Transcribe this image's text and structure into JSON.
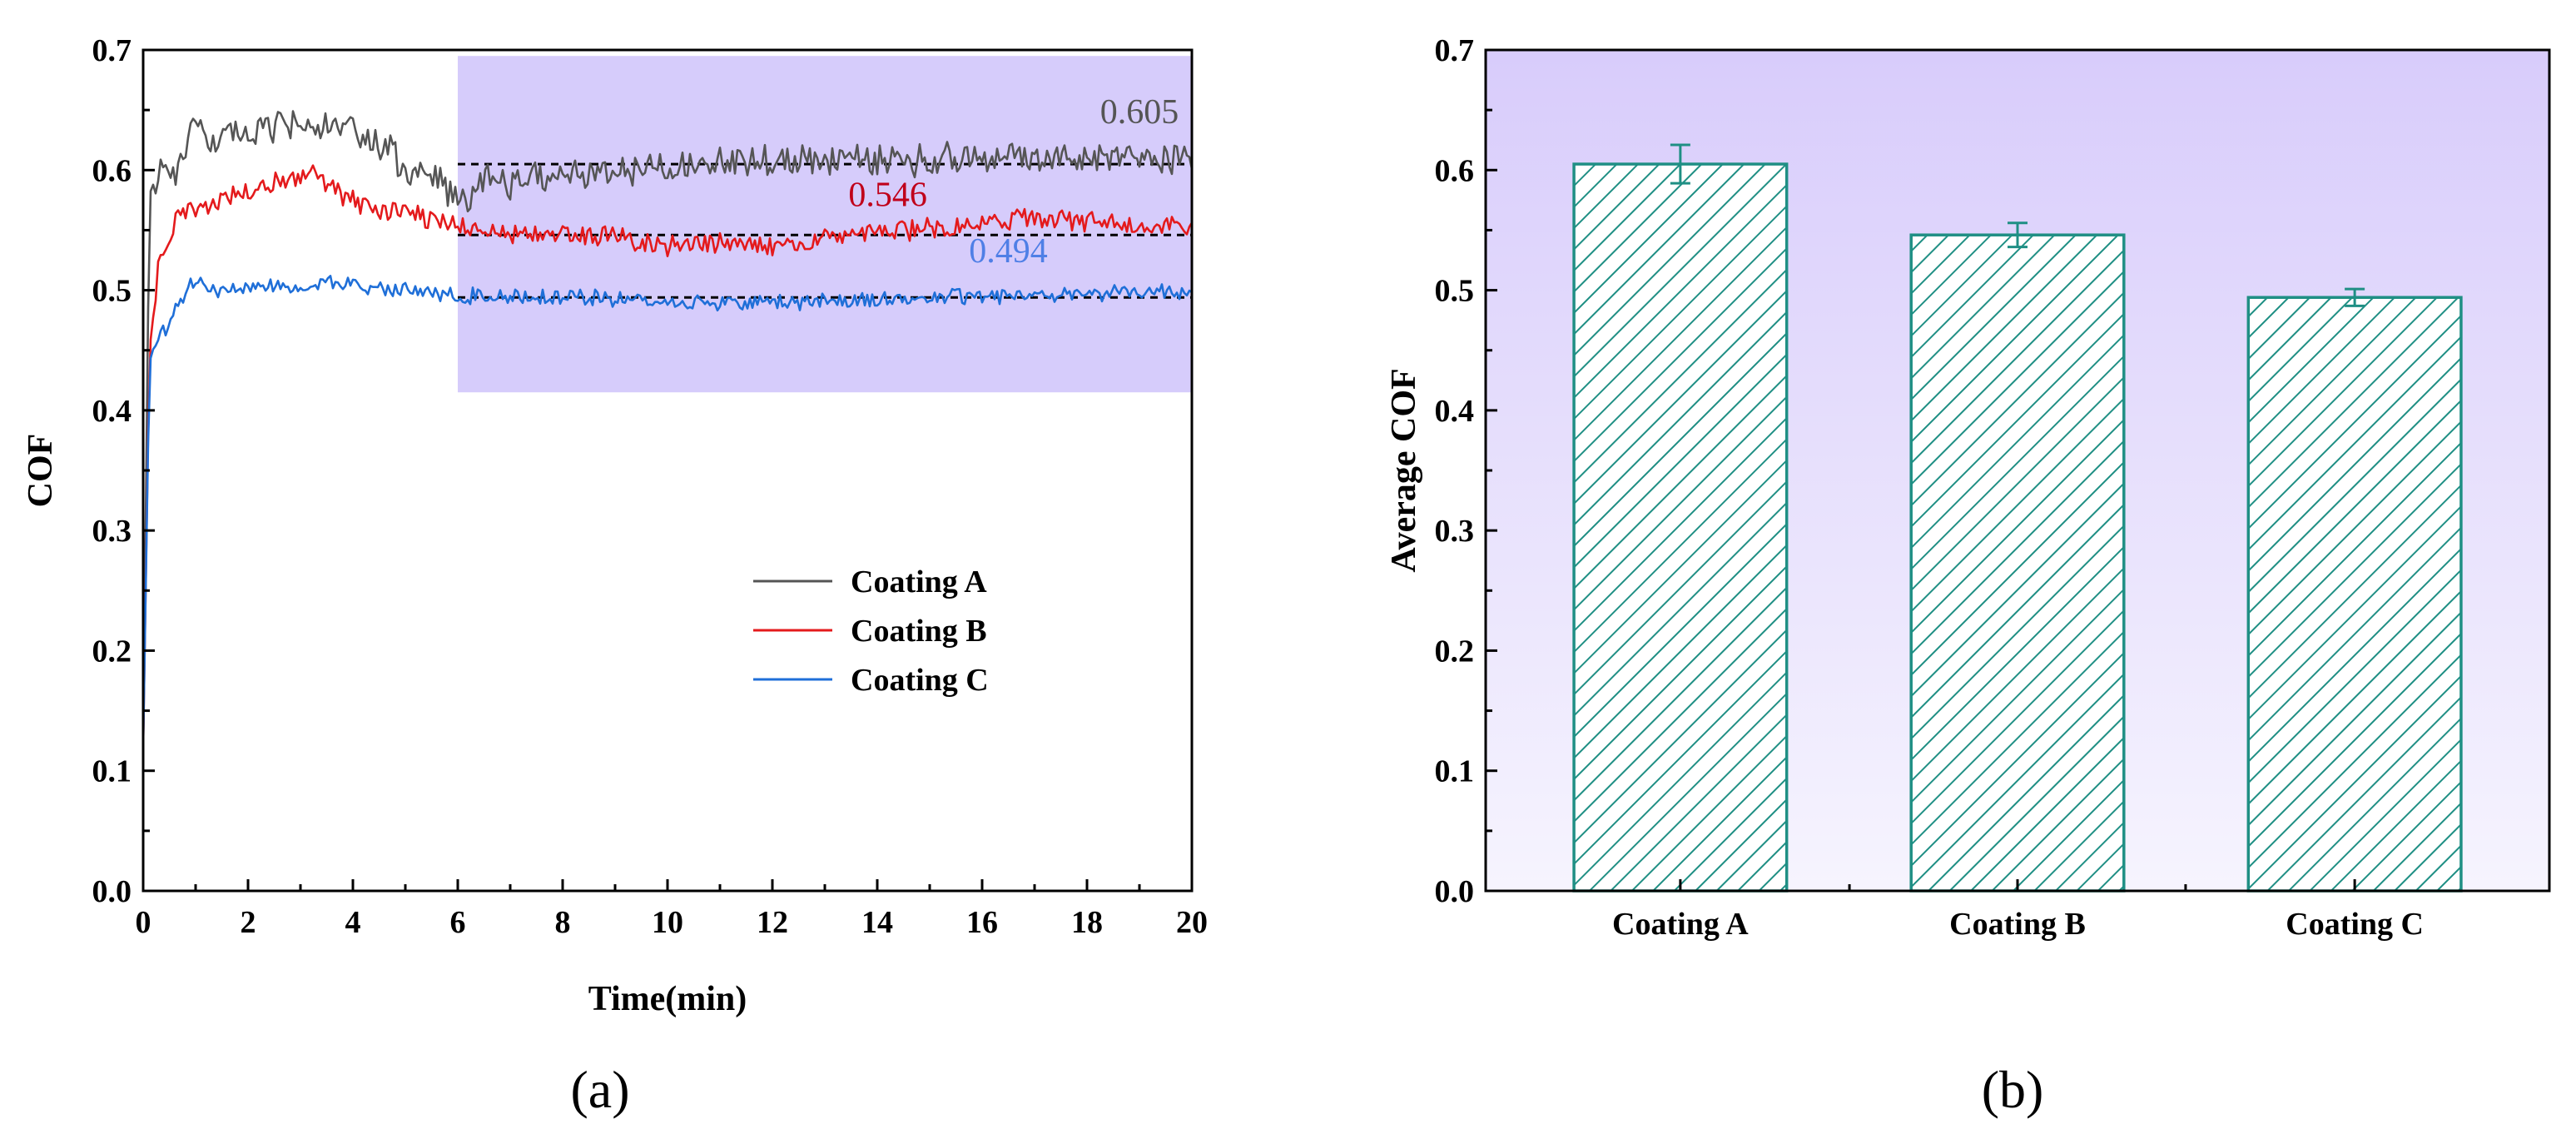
{
  "colors": {
    "coating_a": "#555555",
    "coating_b": "#e41a1c",
    "coating_b_label": "#c0001a",
    "coating_c": "#1f6fd8",
    "coating_c_label": "#4f7fe6",
    "highlight": "#d6ccfb",
    "bar_stroke": "#1f8f84",
    "bg_gradient_top": "#d8ccfb",
    "bg_gradient_bottom": "#f6f4fe"
  },
  "chart_data": [
    {
      "type": "line",
      "panel_label": "(a)",
      "xlabel": "Time(min)",
      "ylabel": "COF",
      "xlim": [
        0,
        20
      ],
      "ylim": [
        0.0,
        0.7
      ],
      "xticks": [
        "0",
        "2",
        "4",
        "6",
        "8",
        "10",
        "12",
        "14",
        "16",
        "18",
        "20"
      ],
      "yticks": [
        "0.0",
        "0.1",
        "0.2",
        "0.3",
        "0.4",
        "0.5",
        "0.6",
        "0.7"
      ],
      "highlight_region": {
        "x": [
          6,
          20
        ],
        "y": [
          0.415,
          0.695
        ]
      },
      "legend": [
        "Coating A",
        "Coating B",
        "Coating C"
      ],
      "series": [
        {
          "name": "Coating A",
          "profile": [
            [
              0,
              0.12
            ],
            [
              0.12,
              0.58
            ],
            [
              0.3,
              0.6
            ],
            [
              0.6,
              0.6
            ],
            [
              0.9,
              0.63
            ],
            [
              1.5,
              0.625
            ],
            [
              2.0,
              0.63
            ],
            [
              2.6,
              0.635
            ],
            [
              3.0,
              0.64
            ],
            [
              3.5,
              0.635
            ],
            [
              4.0,
              0.63
            ],
            [
              4.6,
              0.62
            ],
            [
              5.0,
              0.6
            ],
            [
              5.5,
              0.595
            ],
            [
              6.0,
              0.57
            ],
            [
              6.5,
              0.595
            ],
            [
              7.0,
              0.59
            ],
            [
              8.0,
              0.596
            ],
            [
              9.0,
              0.598
            ],
            [
              10.0,
              0.605
            ],
            [
              12.0,
              0.608
            ],
            [
              14.0,
              0.608
            ],
            [
              16.0,
              0.61
            ],
            [
              18.0,
              0.612
            ],
            [
              20.0,
              0.61
            ]
          ],
          "noise": 0.012,
          "mean_line": 0.605,
          "mean_label": "0.605"
        },
        {
          "name": "Coating B",
          "profile": [
            [
              0,
              0.12
            ],
            [
              0.12,
              0.45
            ],
            [
              0.3,
              0.52
            ],
            [
              0.5,
              0.55
            ],
            [
              0.8,
              0.565
            ],
            [
              1.5,
              0.575
            ],
            [
              2.5,
              0.59
            ],
            [
              3.2,
              0.6
            ],
            [
              3.6,
              0.585
            ],
            [
              4.2,
              0.57
            ],
            [
              5.0,
              0.565
            ],
            [
              6.0,
              0.555
            ],
            [
              7.0,
              0.545
            ],
            [
              8.0,
              0.548
            ],
            [
              9.0,
              0.544
            ],
            [
              10.0,
              0.535
            ],
            [
              11.0,
              0.54
            ],
            [
              12.0,
              0.535
            ],
            [
              13.0,
              0.545
            ],
            [
              14.0,
              0.548
            ],
            [
              15.0,
              0.552
            ],
            [
              16.0,
              0.555
            ],
            [
              17.0,
              0.56
            ],
            [
              18.0,
              0.556
            ],
            [
              20.0,
              0.555
            ]
          ],
          "noise": 0.008,
          "mean_line": 0.546,
          "mean_label": "0.546"
        },
        {
          "name": "Coating C",
          "profile": [
            [
              0,
              0.12
            ],
            [
              0.12,
              0.44
            ],
            [
              0.25,
              0.46
            ],
            [
              0.5,
              0.47
            ],
            [
              0.7,
              0.49
            ],
            [
              1.0,
              0.51
            ],
            [
              1.5,
              0.5
            ],
            [
              2.5,
              0.505
            ],
            [
              4.0,
              0.505
            ],
            [
              5.0,
              0.5
            ],
            [
              6.0,
              0.495
            ],
            [
              8.0,
              0.495
            ],
            [
              10.0,
              0.49
            ],
            [
              12.0,
              0.49
            ],
            [
              14.0,
              0.492
            ],
            [
              16.0,
              0.495
            ],
            [
              18.0,
              0.498
            ],
            [
              20.0,
              0.5
            ]
          ],
          "noise": 0.006,
          "mean_line": 0.494,
          "mean_label": "0.494"
        }
      ]
    },
    {
      "type": "bar",
      "panel_label": "(b)",
      "xlabel": "",
      "ylabel": "Average COF",
      "ylim": [
        0.0,
        0.7
      ],
      "yticks": [
        "0.0",
        "0.1",
        "0.2",
        "0.3",
        "0.4",
        "0.5",
        "0.6",
        "0.7"
      ],
      "categories": [
        "Coating A",
        "Coating B",
        "Coating C"
      ],
      "values": [
        0.605,
        0.546,
        0.494
      ],
      "errors": [
        0.016,
        0.01,
        0.007
      ],
      "pattern": "diagonal-hatch"
    }
  ]
}
